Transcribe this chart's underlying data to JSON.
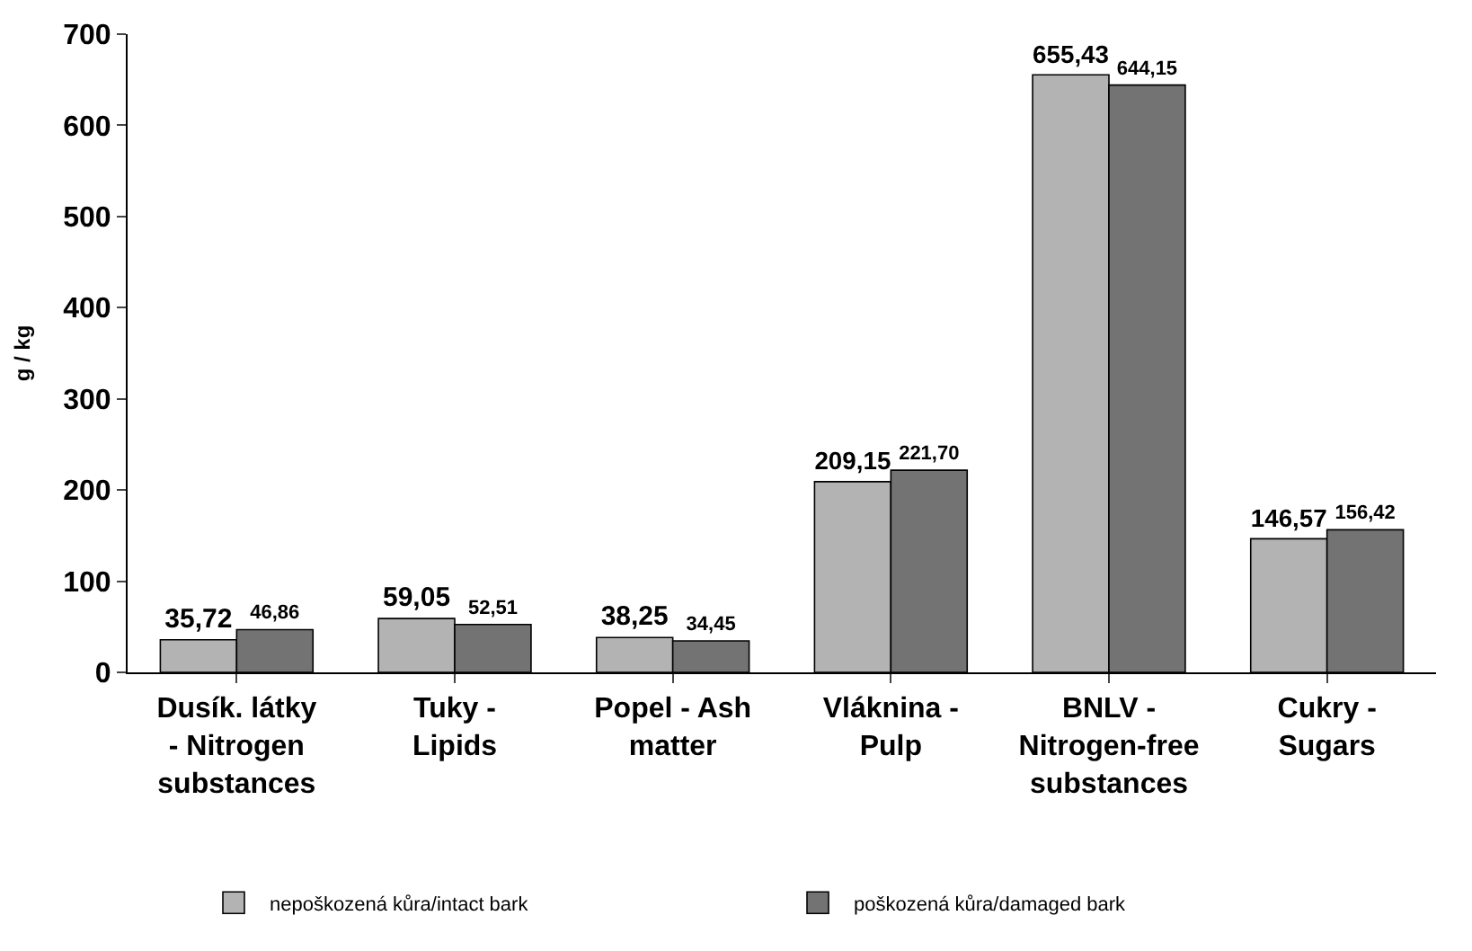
{
  "chart_data": {
    "type": "bar",
    "ylabel": "g / kg",
    "categories": [
      "Dusík. látky - Nitrogen substances",
      "Tuky - Lipids",
      "Popel - Ash matter",
      "Vláknina - Pulp",
      "BNLV - Nitrogen-free substances",
      "Cukry - Sugars"
    ],
    "series": [
      {
        "name": "nepoškozená kůra/intact bark",
        "color": "#b3b3b3",
        "values": [
          35.72,
          59.05,
          38.25,
          209.15,
          655.43,
          146.57
        ],
        "value_labels": [
          "35,72",
          "59,05",
          "38,25",
          "209,15",
          "655,43",
          "146,57"
        ]
      },
      {
        "name": "poškozená kůra/damaged bark",
        "color": "#737373",
        "values": [
          46.86,
          52.51,
          34.45,
          221.7,
          644.15,
          156.42
        ],
        "value_labels": [
          "46,86",
          "52,51",
          "34,45",
          "221,70",
          "644,15",
          "156,42"
        ]
      }
    ],
    "ylim": [
      0,
      700
    ],
    "yticks": [
      0,
      100,
      200,
      300,
      400,
      500,
      600,
      700
    ],
    "grid": false,
    "legend": "bottom"
  }
}
